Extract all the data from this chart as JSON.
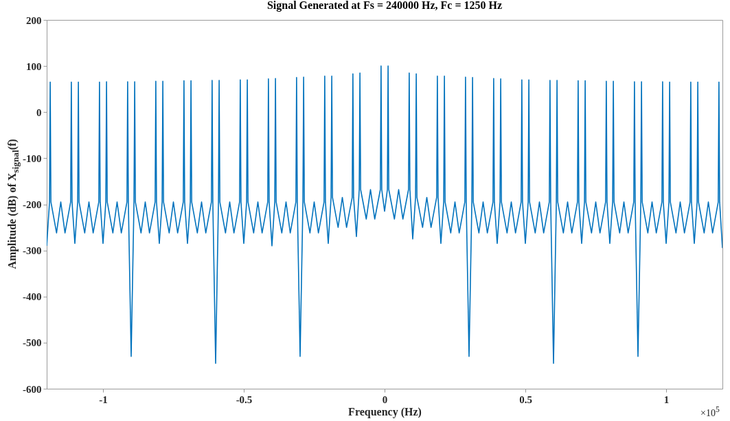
{
  "chart_data": {
    "type": "line",
    "title": "Signal Generated at Fs = 240000 Hz, Fc = 1250 Hz",
    "xlabel": "Frequency (Hz)",
    "ylabel": "Amplitude (dB) of X$_{signal}$(f)",
    "annotations": [
      "×10$^{5}$"
    ],
    "xlim": [
      -1.2,
      1.2
    ],
    "ylim": [
      -600,
      200
    ],
    "xticks": [
      -1,
      -0.5,
      0,
      0.5,
      1
    ],
    "yticks": [
      -600,
      -500,
      -400,
      -300,
      -200,
      -100,
      0,
      100,
      200
    ],
    "grid": false,
    "series": [
      {
        "color": "#0072bd",
        "x": [
          -1.2,
          -1.19,
          -1.1875,
          -1.185,
          -1.165,
          -1.15,
          -1.135,
          -1.115,
          -1.1125,
          -1.11,
          -1.1,
          -1.09,
          -1.0875,
          -1.085,
          -1.065,
          -1.05,
          -1.035,
          -1.015,
          -1.0125,
          -1.01,
          -1,
          -0.99,
          -0.9875,
          -0.985,
          -0.965,
          -0.95,
          -0.935,
          -0.915,
          -0.9125,
          -0.91,
          -0.9,
          -0.89,
          -0.8875,
          -0.885,
          -0.865,
          -0.85,
          -0.835,
          -0.815,
          -0.8125,
          -0.81,
          -0.8,
          -0.79,
          -0.7875,
          -0.785,
          -0.765,
          -0.75,
          -0.735,
          -0.715,
          -0.7125,
          -0.71,
          -0.7,
          -0.69,
          -0.6875,
          -0.685,
          -0.665,
          -0.65,
          -0.635,
          -0.615,
          -0.6125,
          -0.61,
          -0.6,
          -0.59,
          -0.5875,
          -0.585,
          -0.565,
          -0.55,
          -0.535,
          -0.515,
          -0.5125,
          -0.51,
          -0.5,
          -0.49,
          -0.4875,
          -0.485,
          -0.465,
          -0.45,
          -0.435,
          -0.415,
          -0.4125,
          -0.41,
          -0.4,
          -0.39,
          -0.3875,
          -0.385,
          -0.365,
          -0.35,
          -0.335,
          -0.315,
          -0.3125,
          -0.31,
          -0.3,
          -0.29,
          -0.2875,
          -0.285,
          -0.265,
          -0.25,
          -0.235,
          -0.215,
          -0.2125,
          -0.21,
          -0.2,
          -0.19,
          -0.1875,
          -0.185,
          -0.165,
          -0.15,
          -0.135,
          -0.115,
          -0.1125,
          -0.11,
          -0.1,
          -0.09,
          -0.0875,
          -0.085,
          -0.065,
          -0.05,
          -0.035,
          -0.015,
          -0.0125,
          -0.01,
          0,
          0.01,
          0.0125,
          0.015,
          0.035,
          0.05,
          0.065,
          0.085,
          0.0875,
          0.09,
          0.1,
          0.11,
          0.1125,
          0.115,
          0.135,
          0.15,
          0.165,
          0.185,
          0.1875,
          0.19,
          0.2,
          0.21,
          0.2125,
          0.215,
          0.235,
          0.25,
          0.265,
          0.285,
          0.2875,
          0.29,
          0.3,
          0.31,
          0.3125,
          0.315,
          0.335,
          0.35,
          0.365,
          0.385,
          0.3875,
          0.39,
          0.4,
          0.41,
          0.4125,
          0.415,
          0.435,
          0.45,
          0.465,
          0.485,
          0.4875,
          0.49,
          0.5,
          0.51,
          0.5125,
          0.515,
          0.535,
          0.55,
          0.565,
          0.585,
          0.5875,
          0.59,
          0.6,
          0.61,
          0.6125,
          0.615,
          0.635,
          0.65,
          0.665,
          0.685,
          0.6875,
          0.69,
          0.7,
          0.71,
          0.7125,
          0.715,
          0.735,
          0.75,
          0.765,
          0.785,
          0.7875,
          0.79,
          0.8,
          0.81,
          0.8125,
          0.815,
          0.835,
          0.85,
          0.865,
          0.885,
          0.8875,
          0.89,
          0.9,
          0.91,
          0.9125,
          0.915,
          0.935,
          0.95,
          0.965,
          0.985,
          0.9875,
          0.99,
          1,
          1.01,
          1.0125,
          1.015,
          1.035,
          1.05,
          1.065,
          1.085,
          1.0875,
          1.09,
          1.1,
          1.11,
          1.1125,
          1.115,
          1.135,
          1.15,
          1.165,
          1.185,
          1.1875,
          1.19,
          1.2
        ],
        "values": [
          -290,
          -195,
          65,
          -195,
          -262,
          -195,
          -262,
          -195,
          65,
          -195,
          -285,
          -195,
          65,
          -195,
          -262,
          -195,
          -262,
          -195,
          65,
          -195,
          -285,
          -195,
          66,
          -195,
          -262,
          -195,
          -262,
          -195,
          66,
          -195,
          -530,
          -195,
          66,
          -195,
          -262,
          -195,
          -262,
          -195,
          67,
          -195,
          -285,
          -195,
          67,
          -195,
          -262,
          -195,
          -262,
          -195,
          68,
          -195,
          -285,
          -195,
          68,
          -195,
          -262,
          -195,
          -262,
          -195,
          69,
          -195,
          -545,
          -195,
          69,
          -195,
          -262,
          -195,
          -262,
          -195,
          70,
          -195,
          -285,
          -195,
          70,
          -195,
          -262,
          -195,
          -262,
          -195,
          72,
          -195,
          -290,
          -195,
          73,
          -195,
          -262,
          -195,
          -262,
          -195,
          75,
          -195,
          -530,
          -195,
          76,
          -195,
          -262,
          -195,
          -262,
          -195,
          78,
          -195,
          -285,
          -185,
          78,
          -185,
          -250,
          -185,
          -250,
          -185,
          83,
          -185,
          -270,
          -168,
          85,
          -168,
          -232,
          -168,
          -232,
          -168,
          100,
          -168,
          -215,
          -168,
          100,
          -168,
          -232,
          -168,
          -232,
          -168,
          85,
          -168,
          -275,
          -185,
          83,
          -185,
          -250,
          -185,
          -250,
          -185,
          78,
          -185,
          -285,
          -195,
          78,
          -195,
          -262,
          -195,
          -262,
          -195,
          76,
          -195,
          -530,
          -195,
          75,
          -195,
          -262,
          -195,
          -262,
          -195,
          73,
          -195,
          -285,
          -195,
          72,
          -195,
          -262,
          -195,
          -262,
          -195,
          70,
          -195,
          -285,
          -195,
          70,
          -195,
          -262,
          -195,
          -262,
          -195,
          69,
          -195,
          -545,
          -195,
          69,
          -195,
          -262,
          -195,
          -262,
          -195,
          68,
          -195,
          -285,
          -195,
          68,
          -195,
          -262,
          -195,
          -262,
          -195,
          67,
          -195,
          -285,
          -195,
          67,
          -195,
          -262,
          -195,
          -262,
          -195,
          66,
          -195,
          -530,
          -195,
          66,
          -195,
          -262,
          -195,
          -262,
          -195,
          66,
          -195,
          -285,
          -195,
          65,
          -195,
          -262,
          -195,
          -262,
          -195,
          65,
          -195,
          -285,
          -195,
          65,
          -195,
          -262,
          -195,
          -262,
          -195,
          65,
          -195,
          -295
        ]
      }
    ]
  }
}
